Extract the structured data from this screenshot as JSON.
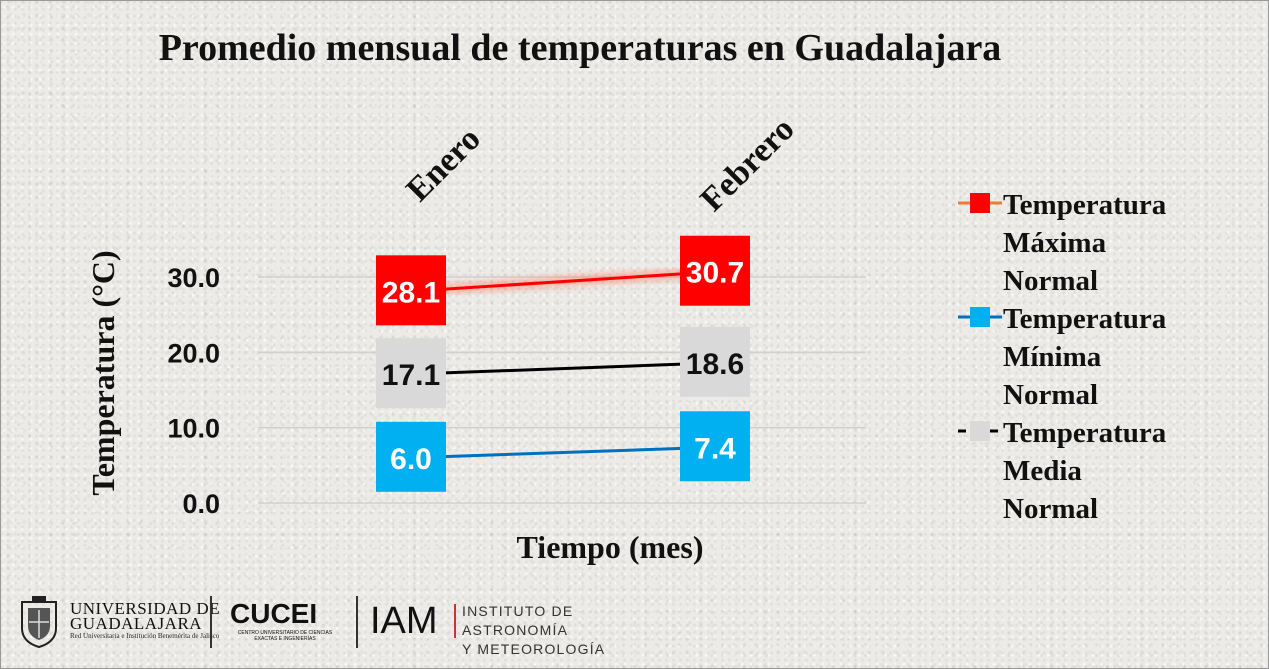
{
  "chart_data": {
    "type": "line",
    "title": "Promedio mensual de temperaturas en Guadalajara",
    "xlabel": "Tiempo (mes)",
    "ylabel": "Temperatura  (°C)",
    "categories": [
      "Enero",
      "Febrero"
    ],
    "yticks": [
      "0.0",
      "10.0",
      "20.0",
      "30.0"
    ],
    "ylim": [
      0,
      30
    ],
    "grid": true,
    "legend_position": "right",
    "series": [
      {
        "name": "Temperatura Máxima Normal",
        "values": [
          28.1,
          30.7
        ],
        "labels": [
          "28.1",
          "30.7"
        ],
        "color": "#ff0000",
        "line_color": "#ff0000",
        "legend_line_color": "#ed7d31",
        "text_color": "#ffffff",
        "style": "solid"
      },
      {
        "name": "Temperatura Mínima Normal",
        "values": [
          6.0,
          7.4
        ],
        "labels": [
          "6.0",
          "7.4"
        ],
        "color": "#00b0f0",
        "line_color": "#0070c0",
        "legend_line_color": "#0070c0",
        "text_color": "#ffffff",
        "style": "solid"
      },
      {
        "name": "Temperatura Media Normal",
        "values": [
          17.1,
          18.6
        ],
        "labels": [
          "17.1",
          "18.6"
        ],
        "color": "#d9d9d9",
        "line_color": "#000000",
        "legend_line_color": "#000000",
        "text_color": "#111111",
        "style": "dash"
      }
    ],
    "legend_lines": [
      [
        "Temperatura",
        "Máxima",
        "Normal"
      ],
      [
        "Temperatura",
        "Mínima",
        "Normal"
      ],
      [
        "Temperatura",
        "Media",
        "Normal"
      ]
    ]
  },
  "footer": {
    "udg_name_line1": "UNIVERSIDAD DE",
    "udg_name_line2": "GUADALAJARA",
    "udg_sub": "Red Universitaria e Institución Benemérita de Jalisco",
    "cucei": "CUCEI",
    "cucei_sub": "CENTRO UNIVERSITARIO DE CIENCIAS EXACTAS E INGENIERÍAS",
    "iam": "IAM",
    "iam_sub_line1": "INSTITUTO DE ASTRONOMÍA",
    "iam_sub_line2": "Y  METEOROLOGÍA"
  }
}
